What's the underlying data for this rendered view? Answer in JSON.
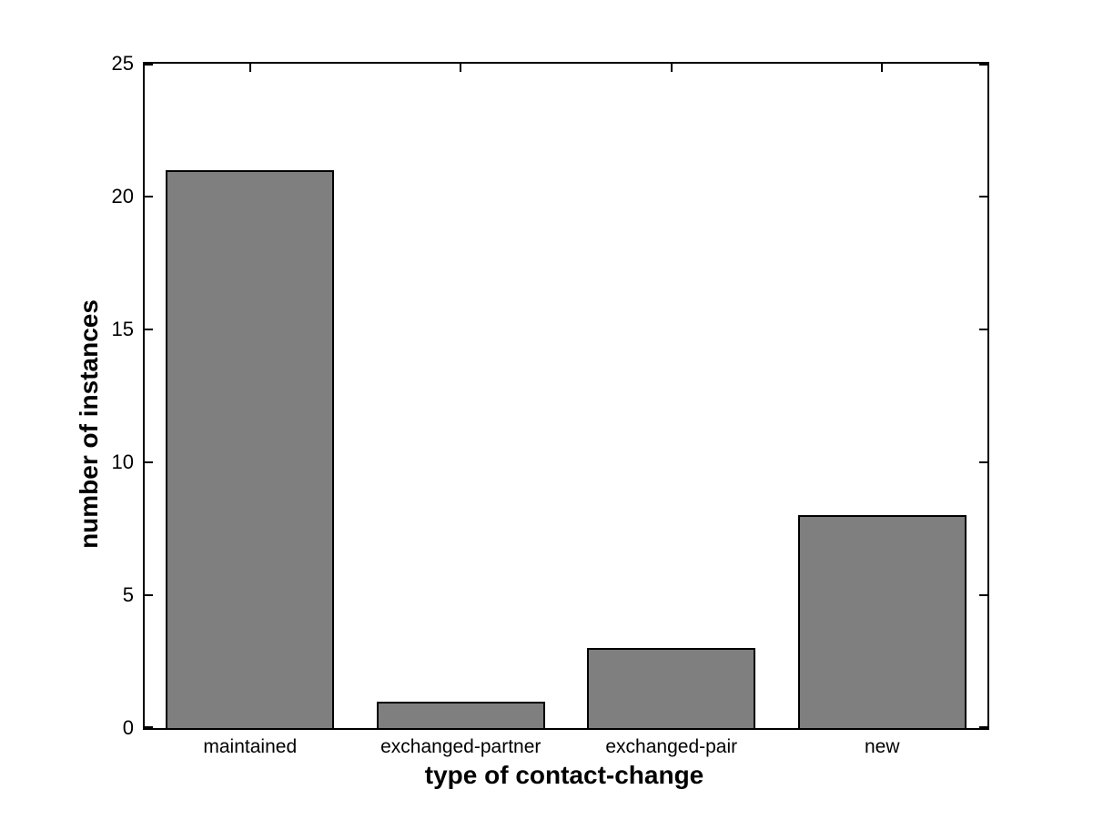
{
  "figure": {
    "background_color": "#ffffff",
    "axes_color": "#000000"
  },
  "chart_data": {
    "type": "bar",
    "title": "",
    "categories": [
      "maintained",
      "exchanged-partner",
      "exchanged-pair",
      "new"
    ],
    "values": [
      21,
      1,
      3,
      8
    ],
    "xlabel": "type of contact-change",
    "ylabel": "number of instances",
    "ylim": [
      0,
      25
    ],
    "yticks": [
      0,
      5,
      10,
      15,
      20,
      25
    ],
    "grid": false,
    "legend": false,
    "bar_fill_color": "#7f7f7f",
    "bar_edge_color": "#000000",
    "bar_width_fraction": 0.8
  }
}
